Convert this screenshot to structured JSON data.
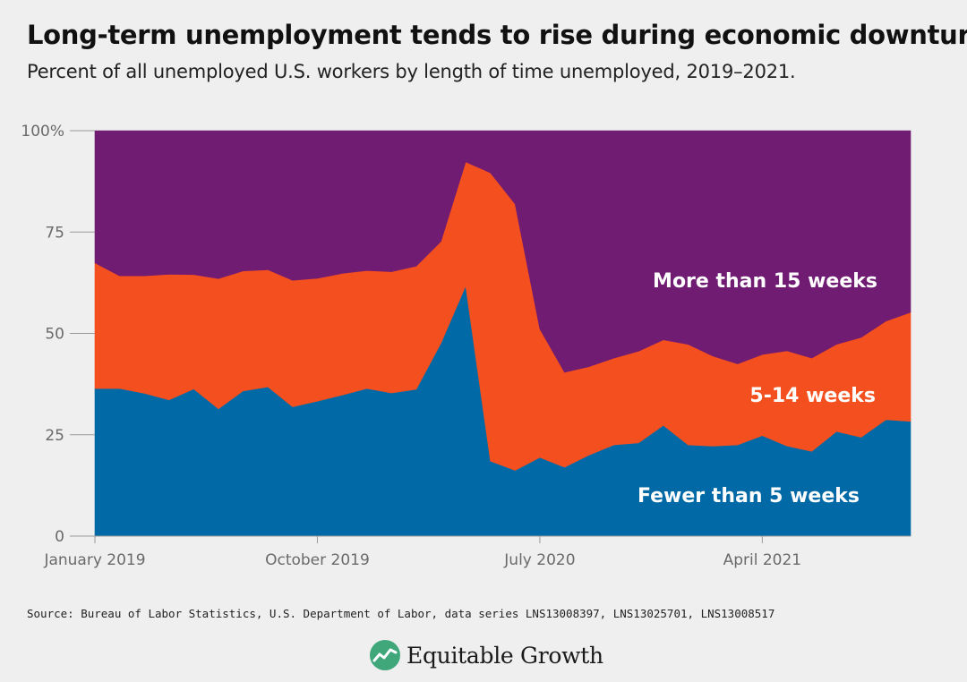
{
  "header": {
    "title": "Long-term unemployment tends to rise during economic downturns",
    "subtitle": "Percent of all unemployed U.S. workers by length of time unemployed, 2019–2021."
  },
  "footer": {
    "source": "Source: Bureau of Labor Statistics, U.S. Department of Labor, data series LNS13008397, LNS13025701, LNS13008517",
    "brand": "Equitable Growth",
    "brand_icon": "equitable-growth-logo-icon"
  },
  "colors": {
    "fewer_than_5": "#016aa6",
    "weeks_5_14": "#f44f1e",
    "more_than_15": "#701c73",
    "background": "#efefef",
    "logo": "#3fa77a"
  },
  "chart_data": {
    "type": "area",
    "stacked": true,
    "title": "Long-term unemployment tends to rise during economic downturns",
    "subtitle": "Percent of all unemployed U.S. workers by length of time unemployed, 2019–2021.",
    "xlabel": "",
    "ylabel": "",
    "ylim": [
      0,
      100
    ],
    "yticks": [
      0,
      25,
      50,
      75,
      100
    ],
    "ytick_labels": [
      "0",
      "25",
      "50",
      "75",
      "100%"
    ],
    "x": [
      "2019-01",
      "2019-02",
      "2019-03",
      "2019-04",
      "2019-05",
      "2019-06",
      "2019-07",
      "2019-08",
      "2019-09",
      "2019-10",
      "2019-11",
      "2019-12",
      "2020-01",
      "2020-02",
      "2020-03",
      "2020-04",
      "2020-05",
      "2020-06",
      "2020-07",
      "2020-08",
      "2020-09",
      "2020-10",
      "2020-11",
      "2020-12",
      "2021-01",
      "2021-02",
      "2021-03",
      "2021-04",
      "2021-05",
      "2021-06",
      "2021-07",
      "2021-08",
      "2021-09",
      "2021-10"
    ],
    "xticks": [
      "2019-01",
      "2019-10",
      "2020-07",
      "2021-04"
    ],
    "xtick_labels": [
      "January 2019",
      "October 2019",
      "July 2020",
      "April 2021"
    ],
    "grid": false,
    "legend": "inline labels",
    "series": [
      {
        "name": "Fewer than 5 weeks",
        "values": [
          36.4,
          36.4,
          35.2,
          33.6,
          36.3,
          31.4,
          35.8,
          36.8,
          31.9,
          33.3,
          34.8,
          36.4,
          35.3,
          36.2,
          47.6,
          61.7,
          18.5,
          16.2,
          19.4,
          17.0,
          20.0,
          22.5,
          23.0,
          27.3,
          22.5,
          22.2,
          22.5,
          24.8,
          22.2,
          20.9,
          25.8,
          24.4,
          28.7,
          28.3
        ]
      },
      {
        "name": "5-14 weeks",
        "values": [
          31.0,
          27.8,
          29.0,
          31.0,
          28.2,
          32.1,
          29.6,
          28.9,
          31.2,
          30.3,
          30.0,
          29.1,
          29.9,
          30.4,
          25.1,
          30.6,
          71.1,
          65.7,
          31.7,
          23.4,
          21.8,
          21.4,
          22.6,
          21.1,
          24.8,
          22.2,
          20.0,
          20.0,
          23.5,
          23.0,
          21.5,
          24.6,
          24.3,
          26.9
        ]
      },
      {
        "name": "More than 15 weeks",
        "values": [
          32.6,
          35.8,
          35.8,
          35.4,
          35.5,
          36.5,
          34.6,
          34.3,
          36.9,
          36.4,
          35.2,
          34.5,
          34.8,
          33.4,
          27.3,
          7.7,
          10.4,
          18.1,
          48.9,
          59.6,
          58.2,
          56.1,
          54.4,
          51.6,
          52.7,
          55.6,
          57.5,
          55.2,
          54.3,
          56.1,
          52.7,
          51.0,
          47.0,
          44.8
        ]
      }
    ],
    "labels": [
      "More than 15 weeks",
      "5-14 weeks",
      "Fewer than 5 weeks"
    ]
  }
}
